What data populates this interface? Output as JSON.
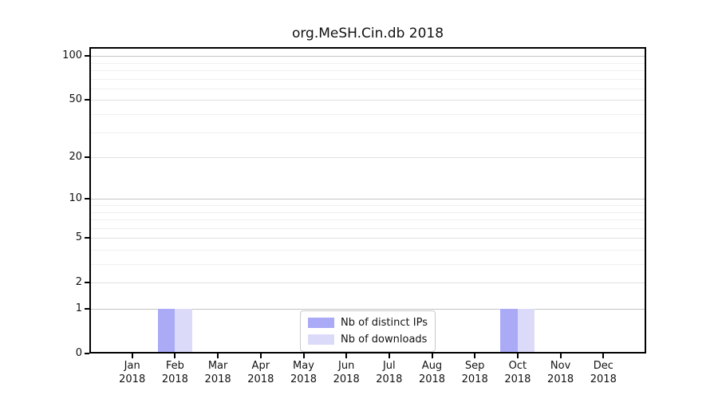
{
  "chart_data": {
    "type": "bar",
    "title": "org.MeSH.Cin.db 2018",
    "x_axis": {
      "categories": [
        {
          "month": "Jan",
          "year": "2018"
        },
        {
          "month": "Feb",
          "year": "2018"
        },
        {
          "month": "Mar",
          "year": "2018"
        },
        {
          "month": "Apr",
          "year": "2018"
        },
        {
          "month": "May",
          "year": "2018"
        },
        {
          "month": "Jun",
          "year": "2018"
        },
        {
          "month": "Jul",
          "year": "2018"
        },
        {
          "month": "Aug",
          "year": "2018"
        },
        {
          "month": "Sep",
          "year": "2018"
        },
        {
          "month": "Oct",
          "year": "2018"
        },
        {
          "month": "Nov",
          "year": "2018"
        },
        {
          "month": "Dec",
          "year": "2018"
        }
      ]
    },
    "y_axis": {
      "scale": "log1p",
      "major_ticks": [
        0,
        1,
        2,
        5,
        10,
        20,
        50,
        100
      ],
      "minor_ticks": [
        3,
        4,
        6,
        7,
        8,
        9,
        30,
        40,
        60,
        70,
        80,
        90
      ],
      "ylim": [
        0,
        115
      ]
    },
    "series": [
      {
        "name": "Nb of distinct IPs",
        "color": "#aaaaf7",
        "values": [
          0,
          1,
          0,
          0,
          0,
          0,
          0,
          0,
          0,
          1,
          0,
          0
        ]
      },
      {
        "name": "Nb of downloads",
        "color": "#dbdbf9",
        "values": [
          0,
          1,
          0,
          0,
          0,
          0,
          0,
          0,
          0,
          1,
          0,
          0
        ]
      }
    ],
    "grid": {
      "decade_color": "#c4c4c4",
      "major_color": "#e0e0e0",
      "minor_color": "#efefef"
    },
    "legend": {
      "position": "lower center"
    },
    "axis_color": "#000000",
    "background_color": "#ffffff"
  }
}
